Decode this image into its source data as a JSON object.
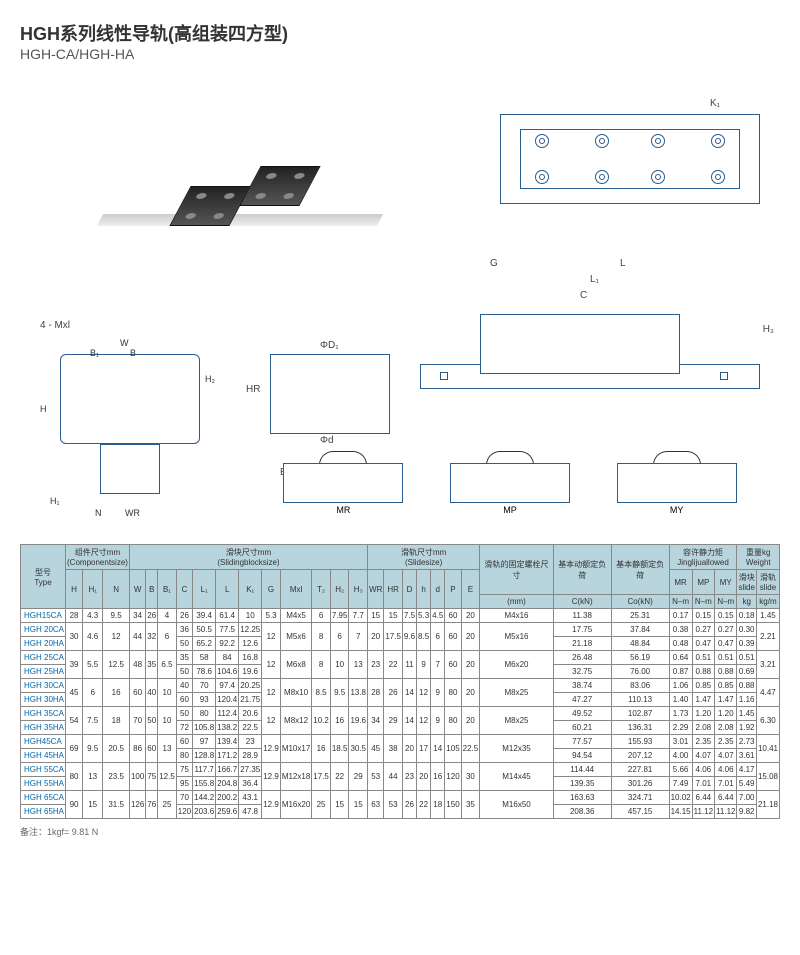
{
  "title_cn": "HGH系列线性导轨(高组装四方型)",
  "title_en": "HGH-CA/HGH-HA",
  "note": "备注：1kgf= 9.81 N",
  "diagram_labels": {
    "k1_top": "K₁",
    "w": "W",
    "b": "B",
    "b1": "B₁",
    "h": "H",
    "h1": "H₁",
    "h2": "H₂",
    "n": "N",
    "wr": "WR",
    "phi_d_up": "ΦD₁",
    "hr": "HR",
    "phi_d": "Φd",
    "e": "E",
    "p": "P",
    "g": "G",
    "l": "L",
    "l1": "L₁",
    "c": "C",
    "h3": "H₃",
    "mxl": "4 - Mxl",
    "mr": "MR",
    "mp": "MP",
    "my": "MY"
  },
  "headers": {
    "type": {
      "cn": "型号",
      "en": "Type"
    },
    "component": {
      "cn": "组件尺寸mm",
      "en": "(Componentsize)"
    },
    "block": {
      "cn": "滑块尺寸mm",
      "en": "(Slidingblocksize)"
    },
    "slide": {
      "cn": "滑轨尺寸mm",
      "en": "(Slidesize)"
    },
    "fix": {
      "cn": "滑轨的固定螺栓尺寸",
      "en": ""
    },
    "dyn": {
      "cn": "基本动额定负荷",
      "en": ""
    },
    "stat": {
      "cn": "基本静额定负荷",
      "en": ""
    },
    "torque": {
      "cn": "容许静力矩",
      "en": "Jinglijuallowed"
    },
    "weight": {
      "cn": "重量kg",
      "en": "Weight"
    },
    "sub": {
      "H": "H",
      "H1": "H₁",
      "N": "N",
      "W": "W",
      "B": "B",
      "B1": "B₁",
      "C": "C",
      "L1": "L₁",
      "L": "L",
      "K1": "K₁",
      "G": "G",
      "Mxl": "Mxl",
      "T2": "T₂",
      "H2": "H₂",
      "H3": "H₃",
      "WR": "WR",
      "HR": "HR",
      "D": "D",
      "h": "h",
      "d": "d",
      "P": "P",
      "E": "E",
      "mm": "(mm)",
      "CkN": "C(kN)",
      "CokN": "Co(kN)",
      "MR": "MR",
      "MP": "MP",
      "MY": "MY",
      "Nm": "N–m",
      "slide_block": {
        "cn": "滑块",
        "en": "slide"
      },
      "slide_rail": {
        "cn": "滑轨",
        "en": "slide"
      },
      "kg": "kg",
      "kgm": "kg/m"
    }
  },
  "rows": [
    {
      "type": "HGH15CA",
      "H": "28",
      "H1": "4.3",
      "N": "9.5",
      "W": "34",
      "B": "26",
      "B1": "4",
      "C": "26",
      "L1": "39.4",
      "L": "61.4",
      "K1": "10",
      "G": "5.3",
      "Mxl": "M4x5",
      "T2": "6",
      "H2": "7.95",
      "H3": "7.7",
      "WR": "15",
      "HR": "15",
      "D": "7.5",
      "h": "5.3",
      "d": "4.5",
      "P": "60",
      "E": "20",
      "mm": "M4x16",
      "CkN": "11.38",
      "CokN": "25.31",
      "MR": "0.17",
      "MP": "0.15",
      "MY": "0.15",
      "wb": "0.18",
      "wr": "1.45"
    },
    {
      "type": "HGH 20CA",
      "C": "36",
      "L1": "50.5",
      "L": "77.5",
      "K1": "12.25",
      "CkN": "17.75",
      "CokN": "37.84",
      "MR": "0.38",
      "MP": "0.27",
      "MY": "0.27",
      "wb": "0.30"
    },
    {
      "type": "HGH 20HA",
      "H": "30",
      "H1": "4.6",
      "N": "12",
      "W": "44",
      "B": "32",
      "B1": "6",
      "C": "50",
      "L1": "65.2",
      "L": "92.2",
      "K1": "12.6",
      "G": "12",
      "Mxl": "M5x6",
      "T2": "8",
      "H2": "6",
      "H3": "7",
      "WR": "20",
      "HR": "17.5",
      "D": "9.6",
      "h": "8.5",
      "d": "6",
      "P": "60",
      "E": "20",
      "mm": "M5x16",
      "CkN": "21.18",
      "CokN": "48.84",
      "MR": "0.48",
      "MP": "0.47",
      "MY": "0.47",
      "wb": "0.39",
      "wr": "2.21"
    },
    {
      "type": "HGH 25CA",
      "C": "35",
      "L1": "58",
      "L": "84",
      "K1": "16.8",
      "CkN": "26.48",
      "CokN": "56.19",
      "MR": "0.64",
      "MP": "0.51",
      "MY": "0.51",
      "wb": "0.51"
    },
    {
      "type": "HGH 25HA",
      "H": "39",
      "H1": "5.5",
      "N": "12.5",
      "W": "48",
      "B": "35",
      "B1": "6.5",
      "C": "50",
      "L1": "78.6",
      "L": "104.6",
      "K1": "19.6",
      "G": "12",
      "Mxl": "M6x8",
      "T2": "8",
      "H2": "10",
      "H3": "13",
      "WR": "23",
      "HR": "22",
      "D": "11",
      "h": "9",
      "d": "7",
      "P": "60",
      "E": "20",
      "mm": "M6x20",
      "CkN": "32.75",
      "CokN": "76.00",
      "MR": "0.87",
      "MP": "0.88",
      "MY": "0.88",
      "wb": "0.69",
      "wr": "3.21"
    },
    {
      "type": "HGH 30CA",
      "C": "40",
      "L1": "70",
      "L": "97.4",
      "K1": "20.25",
      "CkN": "38.74",
      "CokN": "83.06",
      "MR": "1.06",
      "MP": "0.85",
      "MY": "0.85",
      "wb": "0.88"
    },
    {
      "type": "HGH 30HA",
      "H": "45",
      "H1": "6",
      "N": "16",
      "W": "60",
      "B": "40",
      "B1": "10",
      "C": "60",
      "L1": "93",
      "L": "120.4",
      "K1": "21.75",
      "G": "12",
      "Mxl": "M8x10",
      "T2": "8.5",
      "H2": "9.5",
      "H3": "13.8",
      "WR": "28",
      "HR": "26",
      "D": "14",
      "h": "12",
      "d": "9",
      "P": "80",
      "E": "20",
      "mm": "M8x25",
      "CkN": "47.27",
      "CokN": "110.13",
      "MR": "1.40",
      "MP": "1.47",
      "MY": "1.47",
      "wb": "1.16",
      "wr": "4.47"
    },
    {
      "type": "HGH 35CA",
      "C": "50",
      "L1": "80",
      "L": "112.4",
      "K1": "20.6",
      "CkN": "49.52",
      "CokN": "102.87",
      "MR": "1.73",
      "MP": "1.20",
      "MY": "1.20",
      "wb": "1.45"
    },
    {
      "type": "HGH 35HA",
      "H": "54",
      "H1": "7.5",
      "N": "18",
      "W": "70",
      "B": "50",
      "B1": "10",
      "C": "72",
      "L1": "105.8",
      "L": "138.2",
      "K1": "22.5",
      "G": "12",
      "Mxl": "M8x12",
      "T2": "10.2",
      "H2": "16",
      "H3": "19.6",
      "WR": "34",
      "HR": "29",
      "D": "14",
      "h": "12",
      "d": "9",
      "P": "80",
      "E": "20",
      "mm": "M8x25",
      "CkN": "60.21",
      "CokN": "136.31",
      "MR": "2.29",
      "MP": "2.08",
      "MY": "2.08",
      "wb": "1.92",
      "wr": "6.30"
    },
    {
      "type": "HGH45CA",
      "C": "60",
      "L1": "97",
      "L": "139.4",
      "K1": "23",
      "CkN": "77.57",
      "CokN": "155.93",
      "MR": "3.01",
      "MP": "2.35",
      "MY": "2.35",
      "wb": "2.73"
    },
    {
      "type": "HGH 45HA",
      "H": "69",
      "H1": "9.5",
      "N": "20.5",
      "W": "86",
      "B": "60",
      "B1": "13",
      "C": "80",
      "L1": "128.8",
      "L": "171.2",
      "K1": "28.9",
      "G": "12.9",
      "Mxl": "M10x17",
      "T2": "16",
      "H2": "18.5",
      "H3": "30.5",
      "WR": "45",
      "HR": "38",
      "D": "20",
      "h": "17",
      "d": "14",
      "P": "105",
      "E": "22.5",
      "mm": "M12x35",
      "CkN": "94.54",
      "CokN": "207.12",
      "MR": "4.00",
      "MP": "4.07",
      "MY": "4.07",
      "wb": "3.61",
      "wr": "10.41"
    },
    {
      "type": "HGH 55CA",
      "C": "75",
      "L1": "117.7",
      "L": "166.7",
      "K1": "27.35",
      "CkN": "114.44",
      "CokN": "227.81",
      "MR": "5.66",
      "MP": "4.06",
      "MY": "4.06",
      "wb": "4.17"
    },
    {
      "type": "HGH 55HA",
      "H": "80",
      "H1": "13",
      "N": "23.5",
      "W": "100",
      "B": "75",
      "B1": "12.5",
      "C": "95",
      "L1": "155.8",
      "L": "204.8",
      "K1": "36.4",
      "G": "12.9",
      "Mxl": "M12x18",
      "T2": "17.5",
      "H2": "22",
      "H3": "29",
      "WR": "53",
      "HR": "44",
      "D": "23",
      "h": "20",
      "d": "16",
      "P": "120",
      "E": "30",
      "mm": "M14x45",
      "CkN": "139.35",
      "CokN": "301.26",
      "MR": "7.49",
      "MP": "7.01",
      "MY": "7.01",
      "wb": "5.49",
      "wr": "15.08"
    },
    {
      "type": "HGH 65CA",
      "C": "70",
      "L1": "144.2",
      "L": "200.2",
      "K1": "43.1",
      "CkN": "163.63",
      "CokN": "324.71",
      "MR": "10.02",
      "MP": "6.44",
      "MY": "6.44",
      "wb": "7.00"
    },
    {
      "type": "HGH 65HA",
      "H": "90",
      "H1": "15",
      "N": "31.5",
      "W": "126",
      "B": "76",
      "B1": "25",
      "C": "120",
      "L1": "203.6",
      "L": "259.6",
      "K1": "47.8",
      "G": "12.9",
      "Mxl": "M16x20",
      "T2": "25",
      "H2": "15",
      "H3": "15",
      "WR": "63",
      "HR": "53",
      "D": "26",
      "h": "22",
      "d": "18",
      "P": "150",
      "E": "35",
      "mm": "M16x50",
      "CkN": "208.36",
      "CokN": "457.15",
      "MR": "14.15",
      "MP": "11.12",
      "MY": "11.12",
      "wb": "9.82",
      "wr": "21.18"
    }
  ],
  "colors": {
    "header_bg": "#b8d4dc",
    "line": "#2a5c8c",
    "type_link": "#0066aa"
  }
}
